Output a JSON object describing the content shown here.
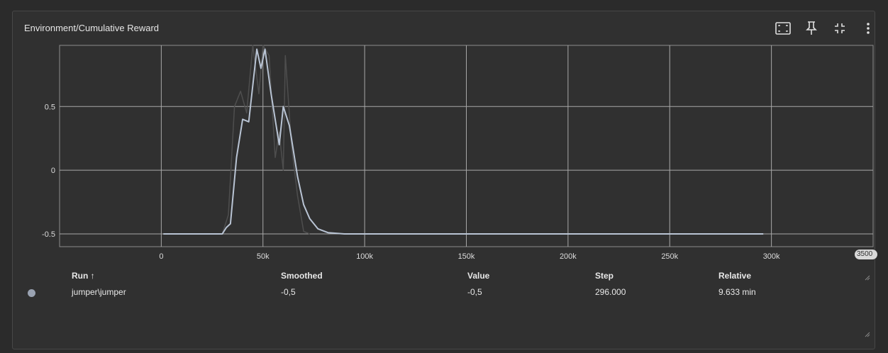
{
  "card": {
    "title": "Environment/Cumulative Reward",
    "toolbar": {
      "icons": [
        "fit-to-data-icon",
        "pin-icon",
        "collapse-icon",
        "more-vert-icon"
      ]
    }
  },
  "chart_data": {
    "type": "line",
    "title": "Environment/Cumulative Reward",
    "xlabel": "",
    "ylabel": "",
    "xlim": [
      -50000,
      350000
    ],
    "ylim": [
      -0.6,
      0.98
    ],
    "x_ticks": [
      0,
      50000,
      100000,
      150000,
      200000,
      250000,
      300000
    ],
    "x_tick_labels": [
      "0",
      "50k",
      "100k",
      "150k",
      "200k",
      "250k",
      "300k"
    ],
    "x_end_label": "3500",
    "y_ticks": [
      -0.5,
      0,
      0.5
    ],
    "y_tick_labels": [
      "-0.5",
      "0",
      "0.5"
    ],
    "grid": true,
    "series": [
      {
        "role": "raw",
        "color": "#4e4e4e",
        "x": [
          1000,
          30000,
          33000,
          36000,
          39000,
          42000,
          45000,
          48000,
          50000,
          53000,
          56000,
          58000,
          60000,
          61000,
          64000,
          67000,
          70000,
          73000
        ],
        "y": [
          -0.5,
          -0.5,
          -0.35,
          0.5,
          0.62,
          0.45,
          0.98,
          0.6,
          0.98,
          0.9,
          0.1,
          0.3,
          0.0,
          0.9,
          0.2,
          -0.2,
          -0.48,
          -0.5
        ]
      },
      {
        "role": "smoothed",
        "color": "#b9c4d4",
        "x": [
          1000,
          30000,
          32000,
          34000,
          37000,
          40000,
          43000,
          47000,
          49000,
          51000,
          54000,
          58000,
          60000,
          63000,
          67000,
          70000,
          73000,
          77000,
          82000,
          90000,
          100000,
          296000
        ],
        "y": [
          -0.5,
          -0.5,
          -0.45,
          -0.42,
          0.1,
          0.4,
          0.38,
          0.95,
          0.8,
          0.95,
          0.6,
          0.2,
          0.5,
          0.35,
          -0.05,
          -0.27,
          -0.38,
          -0.46,
          -0.49,
          -0.5,
          -0.5,
          -0.5
        ]
      }
    ]
  },
  "table": {
    "headers": {
      "run": "Run ↑",
      "smoothed": "Smoothed",
      "value": "Value",
      "step": "Step",
      "relative": "Relative"
    },
    "rows": [
      {
        "run": "jumper\\jumper",
        "smoothed": "-0,5",
        "value": "-0,5",
        "step": "296.000",
        "relative": "9.633 min",
        "color": "#9aa3b2"
      }
    ]
  }
}
